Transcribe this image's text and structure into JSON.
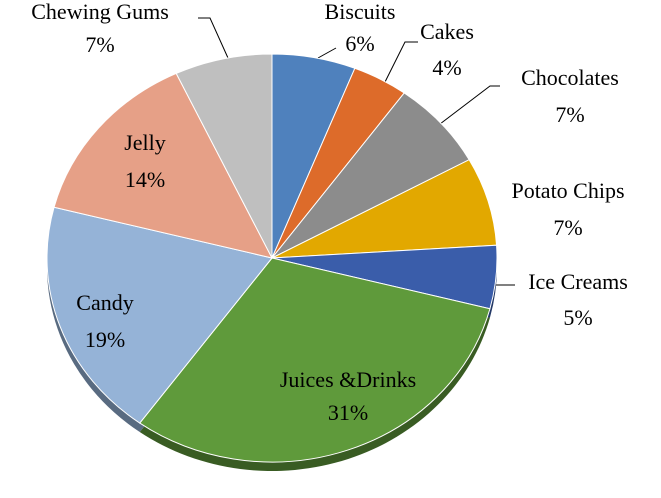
{
  "chart_data": {
    "type": "pie",
    "categories": [
      "Biscuits",
      "Cakes",
      "Chocolates",
      "Potato Chips",
      "Ice Creams",
      "Juices &Drinks",
      "Candy",
      "Jelly",
      "Chewing Gums"
    ],
    "values": [
      6,
      4,
      7,
      7,
      5,
      31,
      19,
      14,
      7
    ],
    "value_labels": [
      "6%",
      "4%",
      "7%",
      "7%",
      "5%",
      "31%",
      "19%",
      "14%",
      "7%"
    ],
    "colors": [
      "#4f81bd",
      "#dd6b2a",
      "#8c8c8c",
      "#e2a800",
      "#3a5daa",
      "#5f9a3b",
      "#95b3d7",
      "#e6a087",
      "#bfbfbf"
    ]
  }
}
